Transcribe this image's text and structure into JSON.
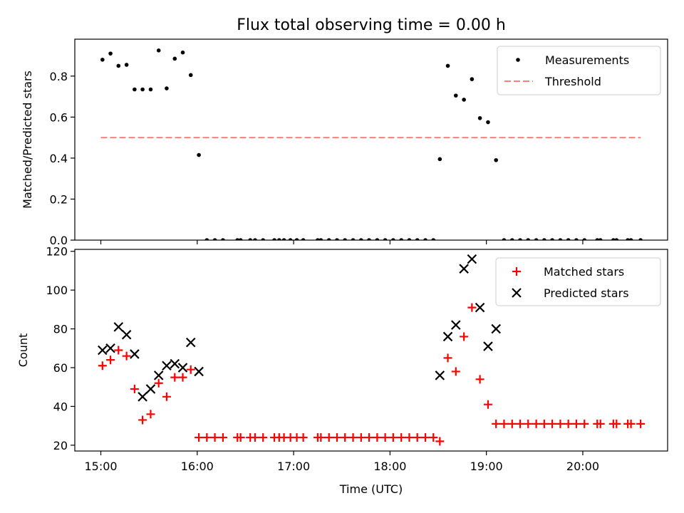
{
  "title": "Flux total observing time = 0.00 h",
  "chart_data": [
    {
      "type": "scatter",
      "name": "ratio-panel",
      "ylabel": "Matched/Predicted stars",
      "xlabel": "",
      "xlim": [
        14.73,
        20.88
      ],
      "ylim": [
        0.0,
        0.98
      ],
      "yticks": [
        0.0,
        0.2,
        0.4,
        0.6,
        0.8
      ],
      "ytick_labels": [
        "0.0",
        "0.2",
        "0.4",
        "0.6",
        "0.8"
      ],
      "legend": {
        "placement": "top-right",
        "entries": [
          "Measurements",
          "Threshold"
        ]
      },
      "threshold": {
        "name": "Threshold",
        "value": 0.5,
        "x_start": 15.0,
        "x_end": 20.6,
        "color": "#ff7f7f"
      },
      "series": [
        {
          "name": "Measurements",
          "marker": "dot",
          "color": "#000000",
          "x": [
            15.017,
            15.1,
            15.183,
            15.267,
            15.35,
            15.433,
            15.517,
            15.6,
            15.683,
            15.767,
            15.85,
            15.933,
            16.017,
            16.1,
            16.183,
            16.267,
            16.417,
            16.45,
            16.55,
            16.6,
            16.683,
            16.8,
            16.85,
            16.9,
            16.967,
            17.033,
            17.1,
            17.25,
            17.283,
            17.367,
            17.45,
            17.533,
            17.617,
            17.7,
            17.783,
            17.867,
            17.95,
            18.033,
            18.117,
            18.2,
            18.283,
            18.367,
            18.45,
            18.517,
            18.6,
            18.683,
            18.767,
            18.85,
            18.933,
            19.017,
            19.1,
            19.183,
            19.267,
            19.35,
            19.433,
            19.517,
            19.6,
            19.683,
            19.767,
            19.85,
            19.933,
            20.017,
            20.15,
            20.183,
            20.317,
            20.35,
            20.467,
            20.5,
            20.6
          ],
          "y": [
            0.88,
            0.91,
            0.85,
            0.855,
            0.735,
            0.735,
            0.735,
            0.925,
            0.74,
            0.885,
            0.915,
            0.805,
            0.415,
            0,
            0,
            0,
            0,
            0,
            0,
            0,
            0,
            0,
            0,
            0,
            0,
            0,
            0,
            0,
            0,
            0,
            0,
            0,
            0,
            0,
            0,
            0,
            0,
            0,
            0,
            0,
            0,
            0,
            0,
            0.395,
            0.85,
            0.705,
            0.685,
            0.785,
            0.595,
            0.575,
            0.39,
            0,
            0,
            0,
            0,
            0,
            0,
            0,
            0,
            0,
            0,
            0,
            0,
            0,
            0,
            0,
            0,
            0,
            0
          ]
        }
      ]
    },
    {
      "type": "scatter",
      "name": "count-panel",
      "ylabel": "Count",
      "xlabel": "Time (UTC)",
      "xlim": [
        14.73,
        20.88
      ],
      "ylim": [
        17.0,
        121.0
      ],
      "yticks": [
        20,
        40,
        60,
        80,
        100,
        120
      ],
      "ytick_labels": [
        "20",
        "40",
        "60",
        "80",
        "100",
        "120"
      ],
      "xticks": [
        15,
        16,
        17,
        18,
        19,
        20
      ],
      "xtick_labels": [
        "15:00",
        "16:00",
        "17:00",
        "18:00",
        "19:00",
        "20:00"
      ],
      "legend": {
        "placement": "top-right",
        "entries": [
          "Matched stars",
          "Predicted stars"
        ]
      },
      "series": [
        {
          "name": "Matched stars",
          "marker": "plus",
          "color": "#ff0000",
          "x": [
            15.017,
            15.1,
            15.183,
            15.267,
            15.35,
            15.433,
            15.517,
            15.6,
            15.683,
            15.767,
            15.85,
            15.933,
            16.017,
            16.1,
            16.183,
            16.267,
            16.417,
            16.45,
            16.55,
            16.6,
            16.683,
            16.8,
            16.85,
            16.9,
            16.967,
            17.033,
            17.1,
            17.25,
            17.283,
            17.367,
            17.45,
            17.533,
            17.617,
            17.7,
            17.783,
            17.867,
            17.95,
            18.033,
            18.117,
            18.2,
            18.283,
            18.367,
            18.45,
            18.517,
            18.6,
            18.683,
            18.767,
            18.85,
            18.933,
            19.017,
            19.1,
            19.183,
            19.267,
            19.35,
            19.433,
            19.517,
            19.6,
            19.683,
            19.767,
            19.85,
            19.933,
            20.017,
            20.15,
            20.183,
            20.317,
            20.35,
            20.467,
            20.5,
            20.6
          ],
          "y": [
            61,
            64,
            69,
            66,
            49,
            33,
            36,
            52,
            45,
            55,
            55,
            59,
            24,
            24,
            24,
            24,
            24,
            24,
            24,
            24,
            24,
            24,
            24,
            24,
            24,
            24,
            24,
            24,
            24,
            24,
            24,
            24,
            24,
            24,
            24,
            24,
            24,
            24,
            24,
            24,
            24,
            24,
            24,
            22,
            65,
            58,
            76,
            91,
            54,
            41,
            31,
            31,
            31,
            31,
            31,
            31,
            31,
            31,
            31,
            31,
            31,
            31,
            31,
            31,
            31,
            31,
            31,
            31,
            31
          ]
        },
        {
          "name": "Predicted stars",
          "marker": "x",
          "color": "#000000",
          "x": [
            15.017,
            15.1,
            15.183,
            15.267,
            15.35,
            15.433,
            15.517,
            15.6,
            15.683,
            15.767,
            15.85,
            15.933,
            16.017,
            18.517,
            18.6,
            18.683,
            18.767,
            18.85,
            18.933,
            19.017,
            19.1
          ],
          "y": [
            69,
            70,
            81,
            77,
            67,
            45,
            49,
            56,
            61,
            62,
            60,
            73,
            58,
            56,
            76,
            82,
            111,
            116,
            91,
            71,
            80
          ]
        }
      ]
    }
  ]
}
